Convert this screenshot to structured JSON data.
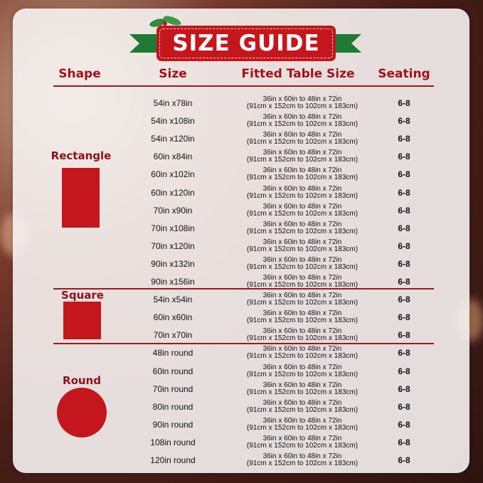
{
  "title": "SIZE GUIDE",
  "headers": {
    "shape": "Shape",
    "size": "Size",
    "fitted": "Fitted Table Size",
    "seating": "Seating"
  },
  "colors": {
    "accent": "#c4161c",
    "ribbon": "#1f7a34",
    "heading": "#a3121b"
  },
  "groups": [
    {
      "shape": "Rectangle",
      "rows": [
        {
          "size": "54in x78in",
          "fit1": "36in x 60in to 48in x 72in",
          "fit2": "(91cm x 152cm to 102cm x 183cm)",
          "seating": "6-8"
        },
        {
          "size": "54in x108in",
          "fit1": "36in x 60in to 48in x 72in",
          "fit2": "(91cm x 152cm to 102cm x 183cm)",
          "seating": "6-8"
        },
        {
          "size": "54in x120in",
          "fit1": "36in x 60in to 48in x 72in",
          "fit2": "(91cm x 152cm to 102cm x 183cm)",
          "seating": "6-8"
        },
        {
          "size": "60in x84in",
          "fit1": "36in x 60in to 48in x 72in",
          "fit2": "(91cm x 152cm to 102cm x 183cm)",
          "seating": "6-8"
        },
        {
          "size": "60in x102in",
          "fit1": "36in x 60in to 48in x 72in",
          "fit2": "(91cm x 152cm to 102cm x 183cm)",
          "seating": "6-8"
        },
        {
          "size": "60in x120in",
          "fit1": "36in x 60in to 48in x 72in",
          "fit2": "(91cm x 152cm to 102cm x 183cm)",
          "seating": "6-8"
        },
        {
          "size": "70in x90in",
          "fit1": "36in x 60in to 48in x 72in",
          "fit2": "(91cm x 152cm to 102cm x 183cm)",
          "seating": "6-8"
        },
        {
          "size": "70in x108in",
          "fit1": "36in x 60in to 48in x 72in",
          "fit2": "(91cm x 152cm to 102cm x 183cm)",
          "seating": "6-8"
        },
        {
          "size": "70in x120in",
          "fit1": "36in x 60in to 48in x 72in",
          "fit2": "(91cm x 152cm to 102cm x 183cm)",
          "seating": "6-8"
        },
        {
          "size": "90in x132in",
          "fit1": "36in x 60in to 48in x 72in",
          "fit2": "(91cm x 152cm to 102cm x 183cm)",
          "seating": "6-8"
        },
        {
          "size": "90in x156in",
          "fit1": "36in x 60in to 48in x 72in",
          "fit2": "(91cm x 152cm to 102cm x 183cm)",
          "seating": "6-8"
        }
      ]
    },
    {
      "shape": "Square",
      "rows": [
        {
          "size": "54in x54in",
          "fit1": "36in x 60in to 48in x 72in",
          "fit2": "(91cm x 152cm to 102cm x 183cm)",
          "seating": "6-8"
        },
        {
          "size": "60in x60in",
          "fit1": "36in x 60in to 48in x 72in",
          "fit2": "(91cm x 152cm to 102cm x 183cm)",
          "seating": "6-8"
        },
        {
          "size": "70in x70in",
          "fit1": "36in x 60in to 48in x 72in",
          "fit2": "(91cm x 152cm to 102cm x 183cm)",
          "seating": "6-8"
        }
      ]
    },
    {
      "shape": "Round",
      "rows": [
        {
          "size": "48in round",
          "fit1": "36in x 60in to 48in x 72in",
          "fit2": "(91cm x 152cm to 102cm x 183cm)",
          "seating": "6-8"
        },
        {
          "size": "60in round",
          "fit1": "36in x 60in to 48in x 72in",
          "fit2": "(91cm x 152cm to 102cm x 183cm)",
          "seating": "6-8"
        },
        {
          "size": "70in round",
          "fit1": "36in x 60in to 48in x 72in",
          "fit2": "(91cm x 152cm to 102cm x 183cm)",
          "seating": "6-8"
        },
        {
          "size": "80in round",
          "fit1": "36in x 60in to 48in x 72in",
          "fit2": "(91cm x 152cm to 102cm x 183cm)",
          "seating": "6-8"
        },
        {
          "size": "90in round",
          "fit1": "36in x 60in to 48in x 72in",
          "fit2": "(91cm x 152cm to 102cm x 183cm)",
          "seating": "6-8"
        },
        {
          "size": "108in round",
          "fit1": "36in x 60in to 48in x 72in",
          "fit2": "(91cm x 152cm to 102cm x 183cm)",
          "seating": "6-8"
        },
        {
          "size": "120in round",
          "fit1": "36in x 60in to 48in x 72in",
          "fit2": "(91cm x 152cm to 102cm x 183cm)",
          "seating": "6-8"
        }
      ]
    }
  ]
}
